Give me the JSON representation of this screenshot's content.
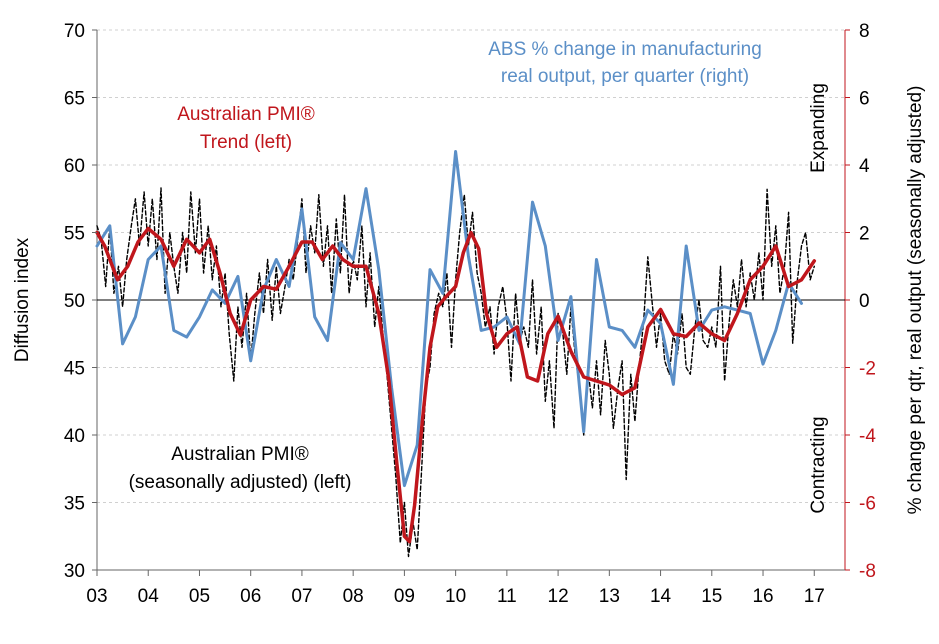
{
  "chart_data": {
    "type": "line",
    "x_tick_labels": [
      "03",
      "04",
      "05",
      "06",
      "07",
      "08",
      "09",
      "10",
      "11",
      "12",
      "13",
      "14",
      "15",
      "16",
      "17"
    ],
    "x_range": [
      2003,
      2017.6
    ],
    "left_axis": {
      "label": "Diffusion index",
      "ylim": [
        30,
        70
      ],
      "ticks": [
        "30",
        "35",
        "40",
        "45",
        "50",
        "55",
        "60",
        "65",
        "70"
      ]
    },
    "right_axis": {
      "label": "% change per qtr, real output (seasonally adjusted)",
      "ylim": [
        -8,
        8
      ],
      "ticks": [
        "-8",
        "-6",
        "-4",
        "-2",
        "0",
        "2",
        "4",
        "6",
        "8"
      ]
    },
    "reference_line": {
      "axis": "left",
      "value": 50
    },
    "annotations": {
      "abs_label_line1": "ABS % change in manufacturing",
      "abs_label_line2": "real output, per quarter (right)",
      "trend_label_line1": "Australian PMI®",
      "trend_label_line2": "Trend (left)",
      "sa_label_line1": "Australian PMI®",
      "sa_label_line2": "(seasonally adjusted) (left)",
      "expanding": "Expanding",
      "contracting": "Contracting"
    },
    "colors": {
      "abs": "#5b8fc7",
      "trend": "#c0161c",
      "sa": "#000000",
      "zero": "#000000",
      "grid": "#d0d0d0",
      "right_axis_text": "#c0161c"
    },
    "series": [
      {
        "name": "ABS % change in manufacturing real output, per quarter (right)",
        "axis": "right",
        "x": [
          2003.0,
          2003.25,
          2003.5,
          2003.75,
          2004.0,
          2004.25,
          2004.5,
          2004.75,
          2005.0,
          2005.25,
          2005.5,
          2005.75,
          2006.0,
          2006.25,
          2006.5,
          2006.75,
          2007.0,
          2007.25,
          2007.5,
          2007.75,
          2008.0,
          2008.25,
          2008.5,
          2008.75,
          2009.0,
          2009.25,
          2009.5,
          2009.75,
          2010.0,
          2010.25,
          2010.5,
          2010.75,
          2011.0,
          2011.25,
          2011.5,
          2011.75,
          2012.0,
          2012.25,
          2012.5,
          2012.75,
          2013.0,
          2013.25,
          2013.5,
          2013.75,
          2014.0,
          2014.25,
          2014.5,
          2014.75,
          2015.0,
          2015.25,
          2015.5,
          2015.75,
          2016.0,
          2016.25,
          2016.5,
          2016.75
        ],
        "values": [
          1.6,
          2.2,
          -1.3,
          -0.5,
          1.2,
          1.6,
          -0.9,
          -1.1,
          -0.5,
          0.3,
          -0.1,
          0.7,
          -1.8,
          0.3,
          1.2,
          0.4,
          2.7,
          -0.5,
          -1.2,
          1.7,
          1.2,
          3.3,
          0.9,
          -2.6,
          -5.5,
          -4.3,
          0.9,
          0.2,
          4.4,
          1.3,
          -0.9,
          -0.8,
          -0.5,
          -1.3,
          2.9,
          1.6,
          -1.2,
          0.1,
          -3.9,
          1.2,
          -0.8,
          -0.9,
          -1.4,
          -0.3,
          -0.7,
          -2.5,
          1.6,
          -0.9,
          -0.3,
          -0.2,
          -0.3,
          -0.4,
          -1.9,
          -0.9,
          0.5,
          -0.1
        ]
      },
      {
        "name": "Australian PMI® Trend (left)",
        "axis": "left",
        "x": [
          2003.0,
          2003.15,
          2003.4,
          2003.6,
          2003.8,
          2004.0,
          2004.25,
          2004.5,
          2004.75,
          2005.0,
          2005.2,
          2005.4,
          2005.6,
          2005.8,
          2006.0,
          2006.25,
          2006.5,
          2006.75,
          2007.0,
          2007.2,
          2007.4,
          2007.6,
          2007.8,
          2008.0,
          2008.25,
          2008.5,
          2008.7,
          2008.85,
          2009.0,
          2009.1,
          2009.2,
          2009.35,
          2009.5,
          2009.65,
          2009.8,
          2010.0,
          2010.15,
          2010.3,
          2010.45,
          2010.6,
          2010.8,
          2011.0,
          2011.2,
          2011.4,
          2011.6,
          2011.8,
          2012.0,
          2012.25,
          2012.5,
          2012.75,
          2013.0,
          2013.25,
          2013.5,
          2013.75,
          2014.0,
          2014.25,
          2014.5,
          2014.75,
          2015.0,
          2015.25,
          2015.5,
          2015.75,
          2016.0,
          2016.25,
          2016.5,
          2016.75,
          2017.0
        ],
        "values": [
          55.0,
          54.0,
          51.5,
          52.5,
          54.3,
          55.3,
          54.5,
          52.5,
          54.5,
          53.5,
          54.5,
          52.0,
          49.0,
          47.4,
          50.0,
          51.0,
          50.8,
          52.5,
          54.3,
          54.3,
          53.0,
          54.0,
          53.0,
          52.5,
          52.5,
          49.0,
          44.0,
          38.0,
          32.5,
          32.1,
          34.8,
          41.0,
          46.5,
          49.5,
          50.2,
          51.0,
          53.5,
          55.0,
          53.8,
          49.0,
          46.5,
          47.5,
          48.0,
          44.3,
          44.0,
          47.5,
          48.8,
          46.2,
          44.3,
          44.0,
          43.7,
          43.0,
          43.5,
          48.0,
          49.3,
          47.5,
          47.3,
          48.3,
          47.5,
          47.0,
          49.0,
          51.5,
          52.5,
          54.0,
          51.0,
          51.5,
          52.9
        ]
      },
      {
        "name": "Australian PMI® (seasonally adjusted) (left)",
        "axis": "left",
        "x": [
          2003.0,
          2003.08,
          2003.17,
          2003.25,
          2003.33,
          2003.42,
          2003.5,
          2003.58,
          2003.67,
          2003.75,
          2003.83,
          2003.92,
          2004.0,
          2004.08,
          2004.17,
          2004.25,
          2004.33,
          2004.42,
          2004.5,
          2004.58,
          2004.67,
          2004.75,
          2004.83,
          2004.92,
          2005.0,
          2005.08,
          2005.17,
          2005.25,
          2005.33,
          2005.42,
          2005.5,
          2005.58,
          2005.67,
          2005.75,
          2005.83,
          2005.92,
          2006.0,
          2006.08,
          2006.17,
          2006.25,
          2006.33,
          2006.42,
          2006.5,
          2006.58,
          2006.67,
          2006.75,
          2006.83,
          2006.92,
          2007.0,
          2007.08,
          2007.17,
          2007.25,
          2007.33,
          2007.42,
          2007.5,
          2007.58,
          2007.67,
          2007.75,
          2007.83,
          2007.92,
          2008.0,
          2008.08,
          2008.17,
          2008.25,
          2008.33,
          2008.42,
          2008.5,
          2008.58,
          2008.67,
          2008.75,
          2008.83,
          2008.92,
          2009.0,
          2009.08,
          2009.17,
          2009.25,
          2009.33,
          2009.42,
          2009.5,
          2009.58,
          2009.67,
          2009.75,
          2009.83,
          2009.92,
          2010.0,
          2010.08,
          2010.17,
          2010.25,
          2010.33,
          2010.42,
          2010.5,
          2010.58,
          2010.67,
          2010.75,
          2010.83,
          2010.92,
          2011.0,
          2011.08,
          2011.17,
          2011.25,
          2011.33,
          2011.42,
          2011.5,
          2011.58,
          2011.67,
          2011.75,
          2011.83,
          2011.92,
          2012.0,
          2012.08,
          2012.17,
          2012.25,
          2012.33,
          2012.42,
          2012.5,
          2012.58,
          2012.67,
          2012.75,
          2012.83,
          2012.92,
          2013.0,
          2013.08,
          2013.17,
          2013.25,
          2013.33,
          2013.42,
          2013.5,
          2013.58,
          2013.67,
          2013.75,
          2013.83,
          2013.92,
          2014.0,
          2014.08,
          2014.17,
          2014.25,
          2014.33,
          2014.42,
          2014.5,
          2014.58,
          2014.67,
          2014.75,
          2014.83,
          2014.92,
          2015.0,
          2015.08,
          2015.17,
          2015.25,
          2015.33,
          2015.42,
          2015.5,
          2015.58,
          2015.67,
          2015.75,
          2015.83,
          2015.92,
          2016.0,
          2016.08,
          2016.17,
          2016.25,
          2016.33,
          2016.42,
          2016.5,
          2016.58,
          2016.67,
          2016.75,
          2016.83,
          2016.92,
          2017.0
        ],
        "values": [
          55.5,
          54.5,
          51.0,
          55.5,
          50.5,
          52.5,
          49.5,
          53.0,
          55.5,
          57.5,
          54.0,
          58.0,
          54.0,
          57.5,
          53.0,
          58.3,
          50.5,
          55.0,
          52.5,
          50.5,
          55.0,
          52.0,
          58.0,
          53.5,
          57.5,
          52.0,
          55.5,
          51.5,
          54.0,
          49.5,
          52.0,
          47.5,
          44.0,
          49.5,
          46.5,
          50.5,
          45.5,
          49.0,
          52.0,
          49.0,
          53.0,
          48.5,
          52.5,
          49.0,
          51.0,
          53.0,
          51.5,
          54.5,
          57.5,
          52.0,
          55.5,
          53.5,
          57.8,
          52.5,
          55.5,
          50.5,
          56.0,
          52.0,
          57.8,
          50.5,
          53.0,
          51.5,
          55.5,
          49.5,
          53.5,
          48.0,
          51.0,
          47.5,
          44.0,
          40.5,
          37.0,
          32.0,
          35.0,
          31.0,
          33.5,
          31.5,
          37.0,
          43.5,
          45.0,
          49.0,
          50.5,
          49.5,
          52.0,
          46.5,
          51.5,
          55.0,
          57.8,
          54.0,
          56.5,
          52.0,
          50.5,
          48.0,
          49.5,
          46.0,
          49.5,
          51.0,
          48.5,
          44.0,
          50.5,
          47.0,
          48.0,
          46.5,
          51.5,
          46.0,
          49.5,
          42.5,
          45.5,
          40.5,
          49.0,
          48.0,
          44.5,
          49.5,
          46.0,
          43.5,
          40.0,
          45.0,
          42.0,
          45.5,
          41.5,
          47.0,
          44.5,
          40.5,
          43.5,
          45.5,
          36.7,
          44.5,
          41.0,
          45.0,
          48.5,
          53.2,
          50.0,
          46.5,
          49.0,
          45.5,
          44.5,
          47.5,
          46.0,
          49.0,
          45.0,
          44.5,
          48.0,
          50.0,
          47.0,
          46.5,
          48.0,
          46.5,
          52.5,
          44.0,
          48.0,
          51.5,
          49.5,
          53.0,
          49.5,
          52.0,
          50.0,
          53.5,
          50.0,
          58.2,
          52.5,
          55.5,
          50.5,
          52.5,
          56.5,
          46.8,
          51.5,
          54.0,
          55.0,
          51.5,
          52.5
        ]
      }
    ]
  }
}
